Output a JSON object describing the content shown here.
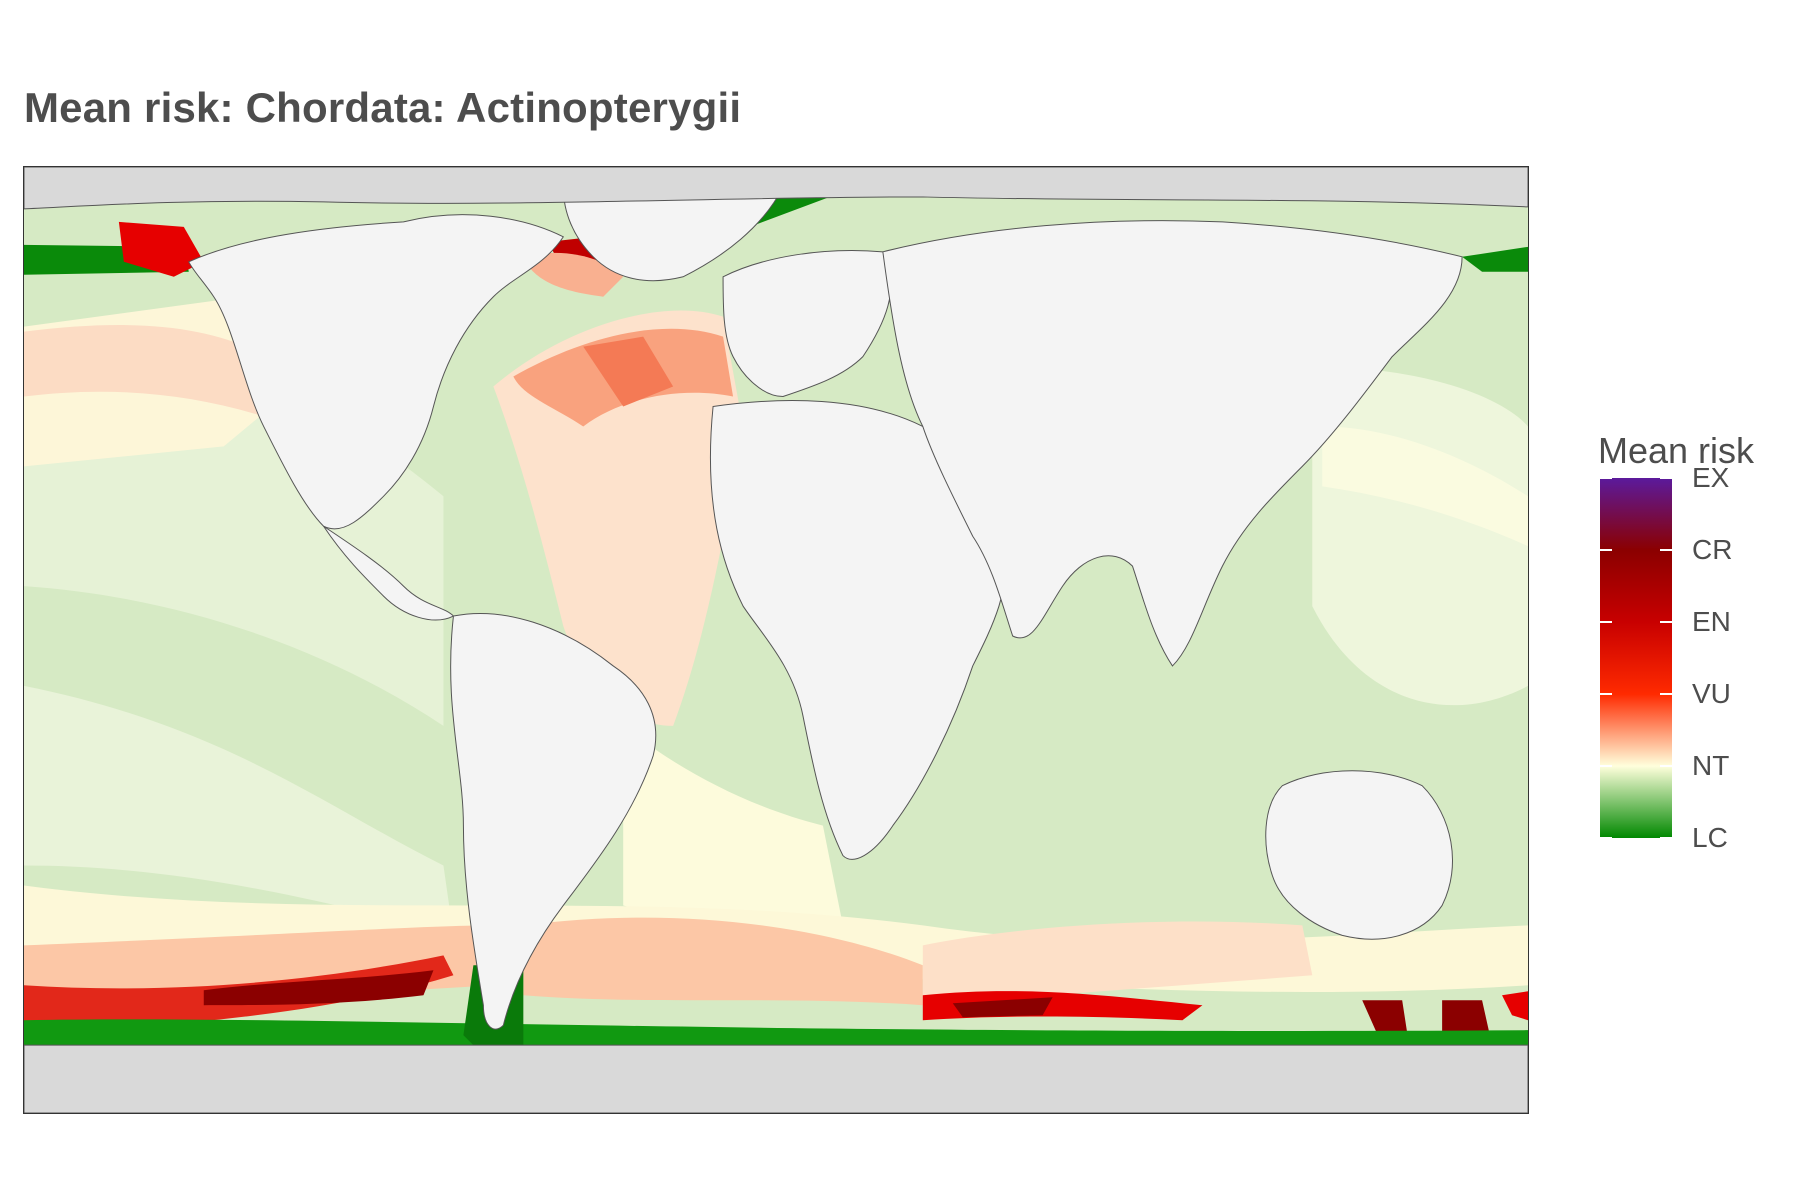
{
  "title": "Mean risk: Chordata: Actinopterygii",
  "legend": {
    "title": "Mean risk",
    "labels": [
      "EX",
      "CR",
      "EN",
      "VU",
      "NT",
      "LC"
    ],
    "colors": {
      "EX": "#5b1a9c",
      "CR": "#8b0000",
      "EN": "#c80000",
      "VU": "#ff2a00",
      "NT": "#ffffdc",
      "LC": "#008800"
    }
  },
  "map": {
    "land_color": "#f4f4f4",
    "ice_color": "#d9d9d9",
    "coast_color": "#555555"
  }
}
